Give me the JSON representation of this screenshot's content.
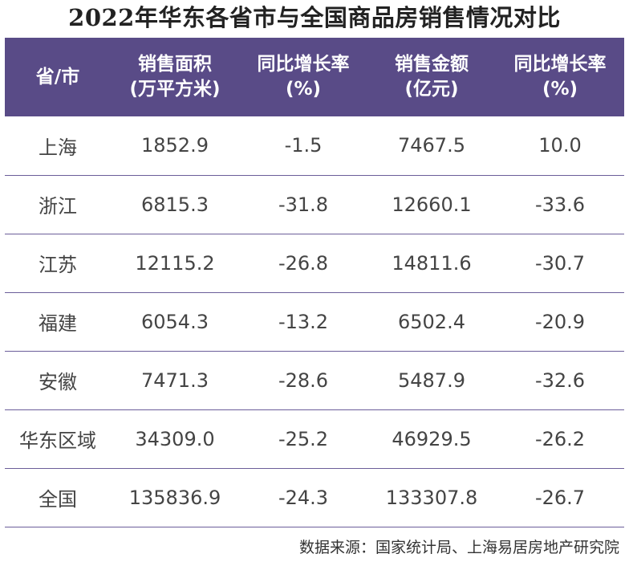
{
  "title": "2022年华东各省市与全国商品房销售情况对比",
  "columns": [
    {
      "line1": "省/市",
      "line2": ""
    },
    {
      "line1": "销售面积",
      "line2": "(万平方米)"
    },
    {
      "line1": "同比增长率",
      "line2": "(%)"
    },
    {
      "line1": "销售金额",
      "line2": "(亿元)"
    },
    {
      "line1": "同比增长率",
      "line2": "(%)"
    }
  ],
  "rows": [
    [
      "上海",
      "1852.9",
      "-1.5",
      "7467.5",
      "10.0"
    ],
    [
      "浙江",
      "6815.3",
      "-31.8",
      "12660.1",
      "-33.6"
    ],
    [
      "江苏",
      "12115.2",
      "-26.8",
      "14811.6",
      "-30.7"
    ],
    [
      "福建",
      "6054.3",
      "-13.2",
      "6502.4",
      "-20.9"
    ],
    [
      "安徽",
      "7471.3",
      "-28.6",
      "5487.9",
      "-32.6"
    ],
    [
      "华东区域",
      "34309.0",
      "-25.2",
      "46929.5",
      "-26.2"
    ],
    [
      "全国",
      "135836.9",
      "-24.3",
      "133307.8",
      "-26.7"
    ]
  ],
  "source": "数据来源：国家统计局、上海易居房地产研究院",
  "colors": {
    "header_bg": "#594b87",
    "header_text": "#ffffff",
    "row_divider": "#6b5e9a",
    "cell_text": "#444444"
  }
}
